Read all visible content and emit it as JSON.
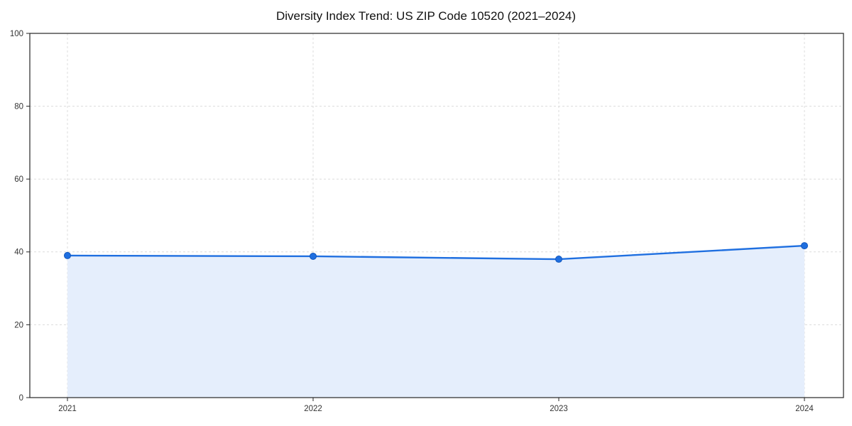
{
  "chart_data": {
    "type": "area",
    "title": "Diversity Index Trend: US ZIP Code 10520 (2021–2024)",
    "series_name": "Diversity Index",
    "categories": [
      "2021",
      "2022",
      "2023",
      "2024"
    ],
    "values": [
      39.0,
      38.8,
      38.0,
      41.7
    ],
    "xlabel": "",
    "ylabel": "",
    "ylim": [
      0,
      100
    ],
    "yticks": [
      0,
      20,
      40,
      60,
      80,
      100
    ],
    "grid": "dashed",
    "legend": "none",
    "colors": {
      "line": "#1f6fe0",
      "marker": "#1f6fe0",
      "marker_edge": "#1257bd",
      "fill": "#e5eefc",
      "grid": "#dcdcdc",
      "axis": "#262626",
      "tick_text": "#333333",
      "background": "#ffffff"
    }
  }
}
